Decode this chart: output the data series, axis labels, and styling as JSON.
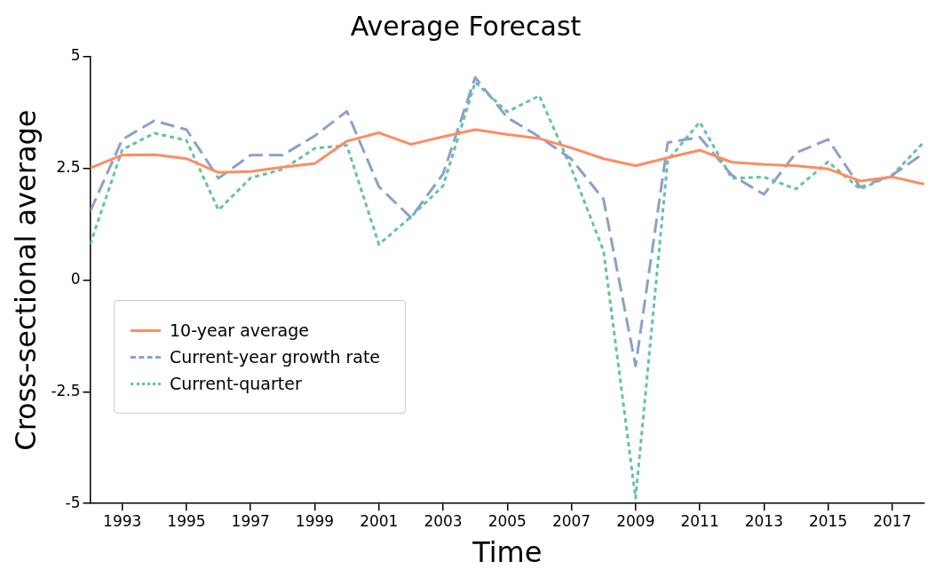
{
  "chart_data": {
    "type": "line",
    "title": "Average Forecast",
    "xlabel": "Time",
    "ylabel": "Cross-sectional average",
    "x": [
      1992,
      1993,
      1994,
      1995,
      1996,
      1997,
      1998,
      1999,
      2000,
      2001,
      2002,
      2003,
      2004,
      2005,
      2006,
      2007,
      2008,
      2009,
      2010,
      2011,
      2012,
      2013,
      2014,
      2015,
      2016,
      2017,
      2018
    ],
    "series": [
      {
        "name": "10-year average",
        "color": "#fc8d62",
        "line_style": "solid",
        "values": [
          2.51,
          2.8,
          2.81,
          2.72,
          2.41,
          2.43,
          2.53,
          2.61,
          3.11,
          3.3,
          3.04,
          3.21,
          3.37,
          3.26,
          3.17,
          2.96,
          2.72,
          2.56,
          2.74,
          2.91,
          2.64,
          2.59,
          2.56,
          2.49,
          2.22,
          2.31,
          2.15
        ]
      },
      {
        "name": "Current-year growth rate",
        "color": "#8da0cb",
        "line_style": "dashed",
        "values": [
          1.54,
          3.15,
          3.57,
          3.37,
          2.28,
          2.8,
          2.8,
          3.23,
          3.78,
          2.09,
          1.4,
          2.38,
          4.54,
          3.64,
          3.21,
          2.71,
          1.81,
          -1.92,
          3.08,
          3.2,
          2.35,
          1.92,
          2.85,
          3.15,
          2.08,
          2.35,
          2.85
        ]
      },
      {
        "name": "Current-quarter",
        "color": "#66c2a5",
        "line_style": "dotted",
        "values": [
          0.8,
          2.92,
          3.29,
          3.13,
          1.57,
          2.29,
          2.48,
          2.95,
          3.02,
          0.8,
          1.42,
          2.11,
          4.43,
          3.77,
          4.13,
          2.5,
          0.66,
          -4.88,
          2.68,
          3.54,
          2.28,
          2.31,
          2.04,
          2.65,
          2.04,
          2.35,
          3.1
        ]
      }
    ],
    "xlim": [
      1992,
      2018
    ],
    "xticks": [
      1993,
      1995,
      1997,
      1999,
      2001,
      2003,
      2005,
      2007,
      2009,
      2011,
      2013,
      2015,
      2017
    ],
    "ylim": [
      -5,
      5
    ],
    "yticks": [
      -5,
      -2.5,
      0,
      2.5,
      5
    ],
    "grid": false,
    "legend": "bottom left",
    "marker": "none"
  }
}
